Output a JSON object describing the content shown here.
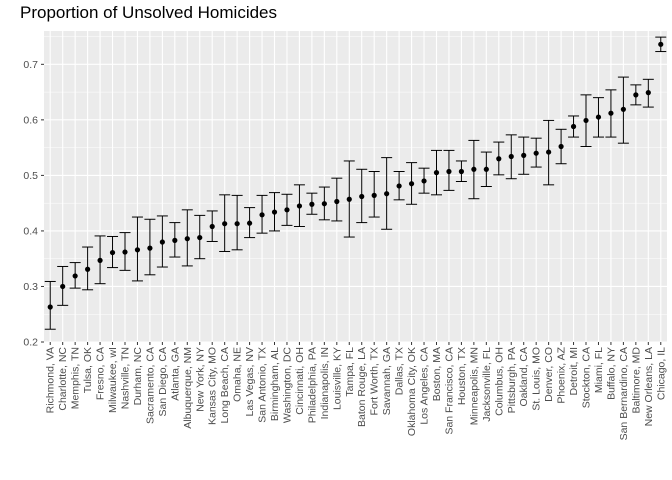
{
  "chart_data": {
    "type": "scatter",
    "title": "Proportion of Unsolved Homicides",
    "xlabel": "",
    "ylabel": "",
    "ylim": [
      0.2,
      0.76
    ],
    "yticks": [
      "0.2",
      "0.3",
      "0.4",
      "0.5",
      "0.6",
      "0.7"
    ],
    "grid": true,
    "background": "#EBEBEB",
    "grid_color": "#FFFFFF",
    "point_color": "#000000",
    "categories": [
      "Richmond, VA",
      "Charlotte, NC",
      "Memphis, TN",
      "Tulsa, OK",
      "Fresno, CA",
      "Milwaukee, wI",
      "Nashville, TN",
      "Durham, NC",
      "Sacramento, CA",
      "San Diego, CA",
      "Atlanta, GA",
      "Albuquerque, NM",
      "New York, NY",
      "Kansas City, MO",
      "Long Beach, CA",
      "Omaha, NE",
      "Las Vegas, NV",
      "San Antonio, TX",
      "Birmingham, AL",
      "Washington, DC",
      "Cincinnati, OH",
      "Philadelphia, PA",
      "Indianapolis, IN",
      "Louisville, KY",
      "Tampa, FL",
      "Baton Rouge, LA",
      "Fort Worth, TX",
      "Savannah, GA",
      "Dallas, TX",
      "Oklahoma City, OK",
      "Los Angeles, CA",
      "Boston, MA",
      "San Francisco, CA",
      "Houston, TX",
      "Minneapolis, MN",
      "Jacksonville, FL",
      "Columbus, OH",
      "Pittsburgh, PA",
      "Oakland, CA",
      "St. Louis, MO",
      "Denver, CO",
      "Phoenix, AZ",
      "Detroit, MI",
      "Stockton, CA",
      "Miami, FL",
      "Buffalo, NY",
      "San Bernardino, CA",
      "Baltimore, MD",
      "New Orleans, LA",
      "Chicago, IL"
    ],
    "values": [
      0.263,
      0.3,
      0.319,
      0.331,
      0.347,
      0.361,
      0.362,
      0.366,
      0.369,
      0.38,
      0.383,
      0.386,
      0.388,
      0.408,
      0.413,
      0.413,
      0.414,
      0.429,
      0.434,
      0.438,
      0.445,
      0.448,
      0.449,
      0.453,
      0.457,
      0.462,
      0.464,
      0.467,
      0.481,
      0.485,
      0.49,
      0.505,
      0.507,
      0.507,
      0.511,
      0.511,
      0.53,
      0.534,
      0.536,
      0.54,
      0.542,
      0.552,
      0.588,
      0.599,
      0.605,
      0.612,
      0.619,
      0.645,
      0.649,
      0.736
    ],
    "lower": [
      0.223,
      0.266,
      0.297,
      0.294,
      0.305,
      0.334,
      0.329,
      0.31,
      0.321,
      0.335,
      0.353,
      0.337,
      0.35,
      0.381,
      0.363,
      0.366,
      0.388,
      0.396,
      0.4,
      0.41,
      0.408,
      0.43,
      0.42,
      0.418,
      0.389,
      0.415,
      0.425,
      0.403,
      0.456,
      0.448,
      0.468,
      0.465,
      0.473,
      0.489,
      0.458,
      0.48,
      0.501,
      0.494,
      0.502,
      0.515,
      0.483,
      0.521,
      0.569,
      0.552,
      0.569,
      0.569,
      0.558,
      0.627,
      0.623,
      0.723
    ],
    "upper": [
      0.309,
      0.336,
      0.343,
      0.371,
      0.391,
      0.39,
      0.397,
      0.425,
      0.421,
      0.427,
      0.415,
      0.438,
      0.428,
      0.436,
      0.465,
      0.464,
      0.442,
      0.464,
      0.469,
      0.466,
      0.483,
      0.468,
      0.479,
      0.495,
      0.526,
      0.511,
      0.507,
      0.532,
      0.507,
      0.523,
      0.513,
      0.545,
      0.545,
      0.526,
      0.563,
      0.542,
      0.56,
      0.573,
      0.569,
      0.567,
      0.599,
      0.583,
      0.607,
      0.645,
      0.64,
      0.654,
      0.677,
      0.663,
      0.673,
      0.749
    ]
  }
}
